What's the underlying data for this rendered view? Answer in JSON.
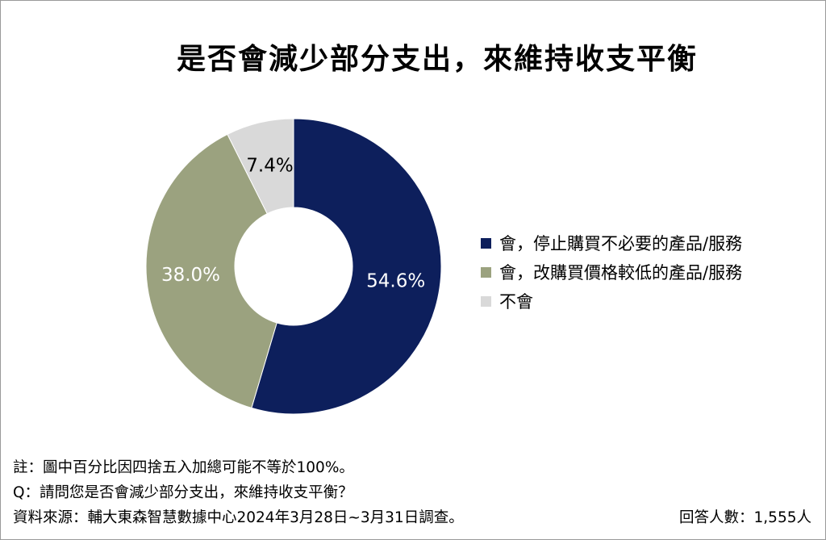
{
  "chart_data": {
    "type": "pie",
    "subtype": "donut",
    "title": "是否會減少部分支出，來維持收支平衡",
    "categories": [
      "會，停止購買不必要的產品/服務",
      "會，改購買價格較低的產品/服務",
      "不會"
    ],
    "values": [
      54.6,
      38.0,
      7.4
    ],
    "data_labels": [
      "54.6%",
      "38.0%",
      "7.4%"
    ],
    "colors": [
      "#0d1f5c",
      "#9ba27f",
      "#d9d9d9"
    ],
    "label_colors": [
      "#ffffff",
      "#ffffff",
      "#000000"
    ],
    "legend_position": "right",
    "start": "top, clockwise"
  },
  "footer": {
    "note": "註：圖中百分比因四捨五入加總可能不等於100%。",
    "question": "Q：請問您是否會減少部分支出，來維持收支平衡？",
    "source": "資料來源：輔大東森智慧數據中心2024年3月28日~3月31日調查。",
    "respondents": "回答人數：1,555人"
  }
}
